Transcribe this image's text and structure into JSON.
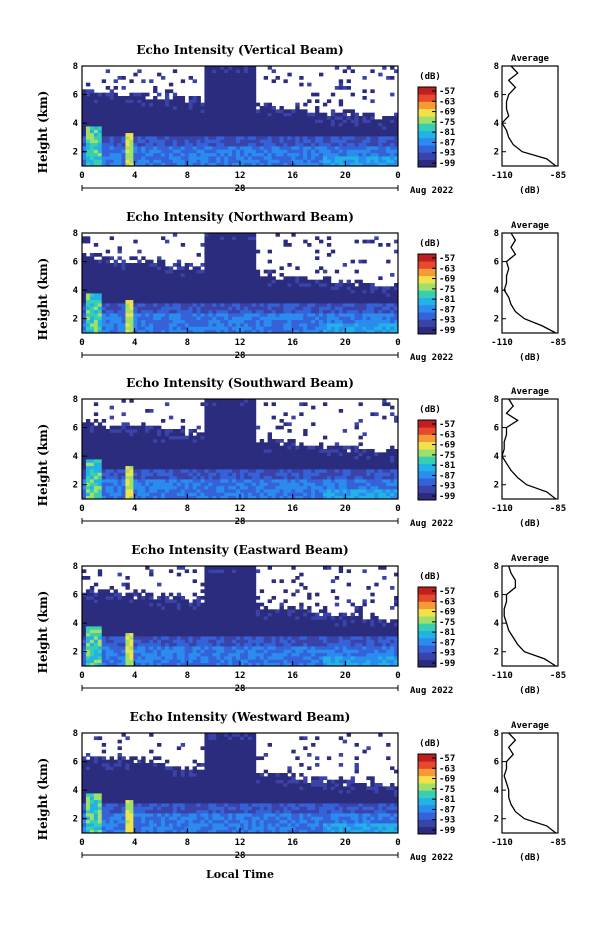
{
  "x_axis": {
    "ticks": [
      "0",
      "4",
      "8",
      "12",
      "16",
      "20",
      "0"
    ],
    "day": "28",
    "month_label": "Aug 2022",
    "label": "Local Time"
  },
  "y_axis": {
    "label": "Height (km)",
    "ticks": [
      "2",
      "4",
      "6",
      "8"
    ]
  },
  "colorbar": {
    "unit": "(dB)",
    "ticks": [
      "-57",
      "-63",
      "-69",
      "-75",
      "-81",
      "-87",
      "-93",
      "-99"
    ],
    "colors": [
      "#2b2c7e",
      "#3a44a8",
      "#3562d8",
      "#2b8bef",
      "#22b2e6",
      "#37cfb2",
      "#9fe06a",
      "#f2e24a",
      "#f59a37",
      "#e64a2a",
      "#c01f1f"
    ]
  },
  "average": {
    "title": "Average",
    "xticks": [
      "-110",
      "-85"
    ],
    "yticks": [
      "2",
      "4",
      "6",
      "8"
    ],
    "xlabel": "(dB)"
  },
  "panels": [
    {
      "title": "Echo Intensity (Vertical Beam)"
    },
    {
      "title": "Echo Intensity (Northward Beam)"
    },
    {
      "title": "Echo Intensity (Southward Beam)"
    },
    {
      "title": "Echo Intensity (Eastward Beam)"
    },
    {
      "title": "Echo Intensity (Westward Beam)"
    }
  ],
  "chart_data": [
    {
      "type": "heatmap",
      "title": "Echo Intensity (Vertical Beam)",
      "xlabel": "",
      "ylabel": "Height (km)",
      "xlim": [
        0,
        24
      ],
      "ylim": [
        1,
        8
      ],
      "colorbar_range_db": [
        -99,
        -57
      ],
      "average_profile": {
        "xlabel": "(dB)",
        "xlim": [
          -110,
          -85
        ],
        "ylim": [
          1,
          8
        ],
        "height_km": [
          1,
          1.5,
          2,
          2.5,
          3,
          3.5,
          4,
          4.5,
          5,
          5.5,
          6,
          6.5,
          7,
          7.5,
          8
        ],
        "value_db": [
          -86,
          -90,
          -101,
          -105,
          -107,
          -108,
          -110,
          -107,
          -108,
          -108,
          -107,
          -104,
          -107,
          -103,
          -106
        ]
      }
    },
    {
      "type": "heatmap",
      "title": "Echo Intensity (Northward Beam)",
      "xlabel": "",
      "ylabel": "Height (km)",
      "xlim": [
        0,
        24
      ],
      "ylim": [
        1,
        8
      ],
      "colorbar_range_db": [
        -99,
        -57
      ],
      "average_profile": {
        "xlabel": "(dB)",
        "xlim": [
          -110,
          -85
        ],
        "ylim": [
          1,
          8
        ],
        "height_km": [
          1,
          1.5,
          2,
          2.5,
          3,
          3.5,
          4,
          4.5,
          5,
          5.5,
          6,
          6.5,
          7,
          7.5,
          8
        ],
        "value_db": [
          -86,
          -92,
          -100,
          -104,
          -106,
          -107,
          -109,
          -108,
          -108,
          -107,
          -108,
          -104,
          -106,
          -104,
          -106
        ]
      }
    },
    {
      "type": "heatmap",
      "title": "Echo Intensity (Southward Beam)",
      "xlabel": "",
      "ylabel": "Height (km)",
      "xlim": [
        0,
        24
      ],
      "ylim": [
        1,
        8
      ],
      "colorbar_range_db": [
        -99,
        -57
      ],
      "average_profile": {
        "xlabel": "(dB)",
        "xlim": [
          -110,
          -85
        ],
        "ylim": [
          1,
          8
        ],
        "height_km": [
          1,
          1.5,
          2,
          2.5,
          3,
          3.5,
          4,
          4.5,
          5,
          5.5,
          6,
          6.5,
          7,
          7.5,
          8
        ],
        "value_db": [
          -86,
          -90,
          -99,
          -103,
          -106,
          -108,
          -110,
          -109,
          -109,
          -108,
          -108,
          -103,
          -108,
          -105,
          -107
        ]
      }
    },
    {
      "type": "heatmap",
      "title": "Echo Intensity (Eastward Beam)",
      "xlabel": "",
      "ylabel": "Height (km)",
      "xlim": [
        0,
        24
      ],
      "ylim": [
        1,
        8
      ],
      "colorbar_range_db": [
        -99,
        -57
      ],
      "average_profile": {
        "xlabel": "(dB)",
        "xlim": [
          -110,
          -85
        ],
        "ylim": [
          1,
          8
        ],
        "height_km": [
          1,
          1.5,
          2,
          2.5,
          3,
          3.5,
          4,
          4.5,
          5,
          5.5,
          6,
          6.5,
          7,
          7.5,
          8
        ],
        "value_db": [
          -86,
          -91,
          -100,
          -103,
          -105,
          -107,
          -108,
          -109,
          -109,
          -108,
          -108,
          -104,
          -104,
          -106,
          -107
        ]
      }
    },
    {
      "type": "heatmap",
      "title": "Echo Intensity (Westward Beam)",
      "xlabel": "Local Time",
      "ylabel": "Height (km)",
      "xlim": [
        0,
        24
      ],
      "ylim": [
        1,
        8
      ],
      "colorbar_range_db": [
        -99,
        -57
      ],
      "average_profile": {
        "xlabel": "(dB)",
        "xlim": [
          -110,
          -85
        ],
        "ylim": [
          1,
          8
        ],
        "height_km": [
          1,
          1.5,
          2,
          2.5,
          3,
          3.5,
          4,
          4.5,
          5,
          5.5,
          6,
          6.5,
          7,
          7.5,
          8
        ],
        "value_db": [
          -86,
          -90,
          -100,
          -104,
          -106,
          -107,
          -107,
          -108,
          -109,
          -108,
          -108,
          -105,
          -107,
          -104,
          -107
        ]
      }
    }
  ]
}
